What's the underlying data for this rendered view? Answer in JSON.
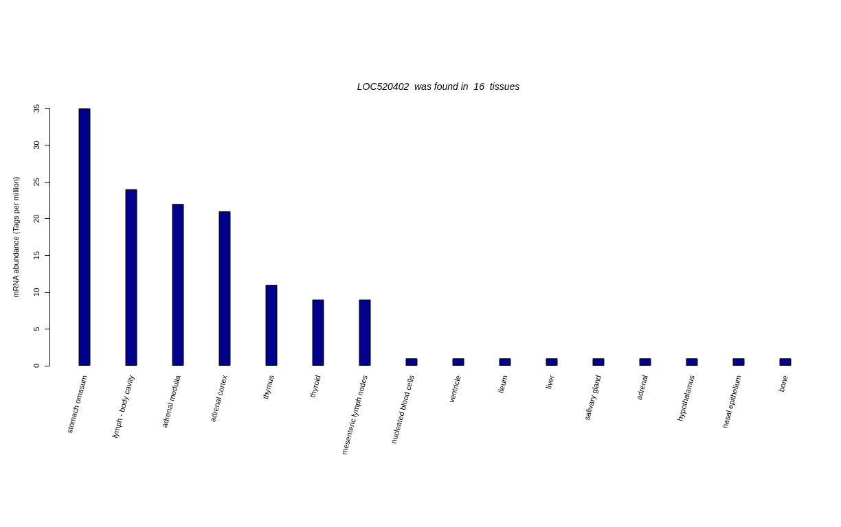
{
  "chart_data": {
    "type": "bar",
    "title": "LOC520402  was found in  16  tissues",
    "ylabel": "mRNA abundance (Tags per million)",
    "categories": [
      "stomach omasum",
      "lymph - body cavity",
      "adrenal medulla",
      "adrenal cortex",
      "thymus",
      "thyroid",
      "mesenteric lymph nodes",
      "nucleated blood cells",
      "ventricle",
      "ileum",
      "liver",
      "salivary gland",
      "adrenal",
      "hypothalamus",
      "nasal epithelium",
      "bone"
    ],
    "values": [
      35,
      24,
      22,
      21,
      11,
      9,
      9,
      1,
      1,
      1,
      1,
      1,
      1,
      1,
      1,
      1
    ],
    "color": "#00008b",
    "ylim": [
      0,
      35
    ],
    "yticks": [
      0,
      5,
      10,
      15,
      20,
      25,
      30,
      35
    ],
    "grid": false
  }
}
